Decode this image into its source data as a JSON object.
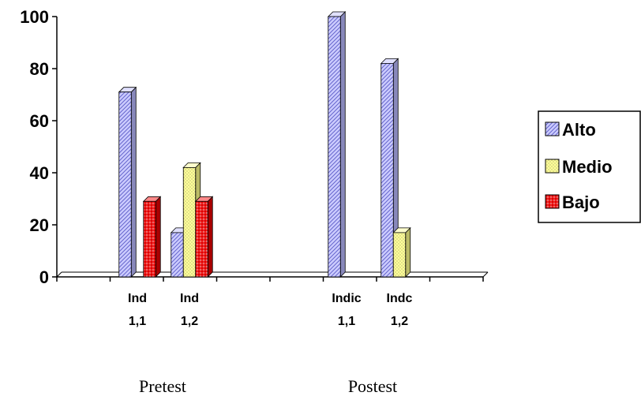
{
  "chart_data": {
    "type": "bar",
    "title": "",
    "xlabel": "",
    "ylabel": "",
    "ylim": [
      0,
      100
    ],
    "yticks": [
      0,
      20,
      40,
      60,
      80,
      100
    ],
    "categories": [
      {
        "line1": "Ind",
        "line2": "1,1"
      },
      {
        "line1": "Ind",
        "line2": "1,2"
      },
      {
        "line1": "Indic",
        "line2": "1,1"
      },
      {
        "line1": "Indc",
        "line2": "1,2"
      }
    ],
    "groups": [
      {
        "label": "Pretest",
        "categories": [
          0,
          1
        ]
      },
      {
        "label": "Postest",
        "categories": [
          2,
          3
        ]
      }
    ],
    "series": [
      {
        "name": "Alto",
        "values": [
          71,
          17,
          100,
          82
        ]
      },
      {
        "name": "Medio",
        "values": [
          0,
          42,
          0,
          17
        ]
      },
      {
        "name": "Bajo",
        "values": [
          29,
          29,
          0,
          0
        ]
      }
    ],
    "legend_position": "right",
    "grid": false,
    "style": "3d-clustered-bar",
    "colors": {
      "Alto": "#ccccff",
      "Medio": "#ffff99",
      "Bajo": "#ff0000"
    }
  }
}
